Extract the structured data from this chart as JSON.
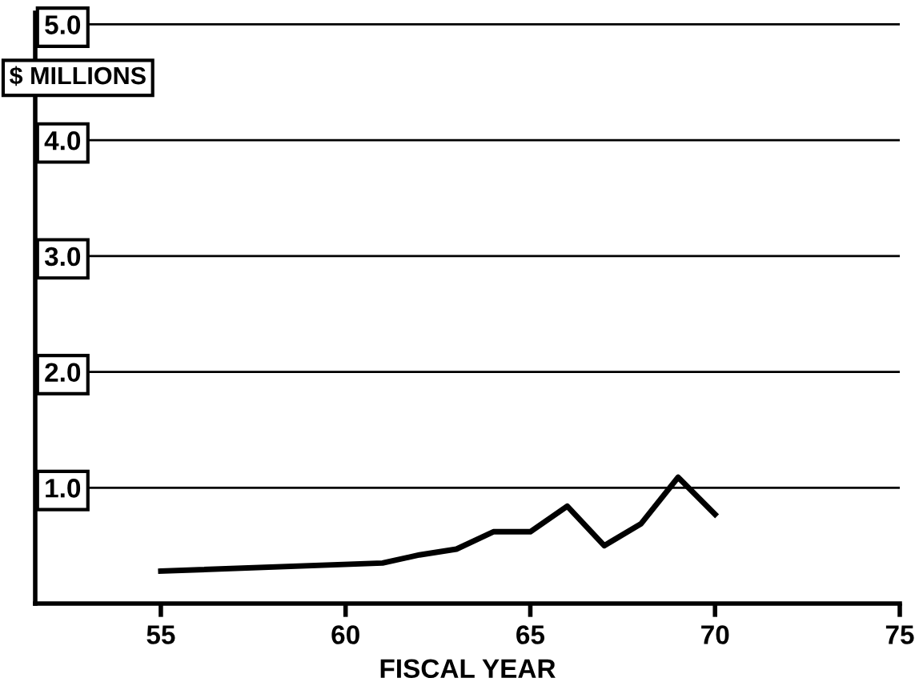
{
  "chart_data": {
    "type": "line",
    "xlabel": "FISCAL YEAR",
    "ylabel": "$ MILLIONS",
    "x": [
      55,
      61,
      62,
      63,
      64,
      65,
      66,
      67,
      68,
      69,
      70
    ],
    "values": [
      0.28,
      0.35,
      0.42,
      0.47,
      0.62,
      0.62,
      0.84,
      0.5,
      0.69,
      1.09,
      0.77
    ],
    "color": "#000000",
    "xlim": [
      51.6,
      75
    ],
    "ylim": [
      0,
      5.1
    ],
    "xticks": [
      55,
      60,
      65,
      70,
      75
    ],
    "yticks": [
      {
        "value": 1.0,
        "label": "1.0"
      },
      {
        "value": 2.0,
        "label": "2.0"
      },
      {
        "value": 3.0,
        "label": "3.0"
      },
      {
        "value": 4.0,
        "label": "4.0"
      },
      {
        "value": 5.0,
        "label": "5.0"
      }
    ],
    "grid": "y",
    "marker": "none",
    "line_style": "solid"
  }
}
